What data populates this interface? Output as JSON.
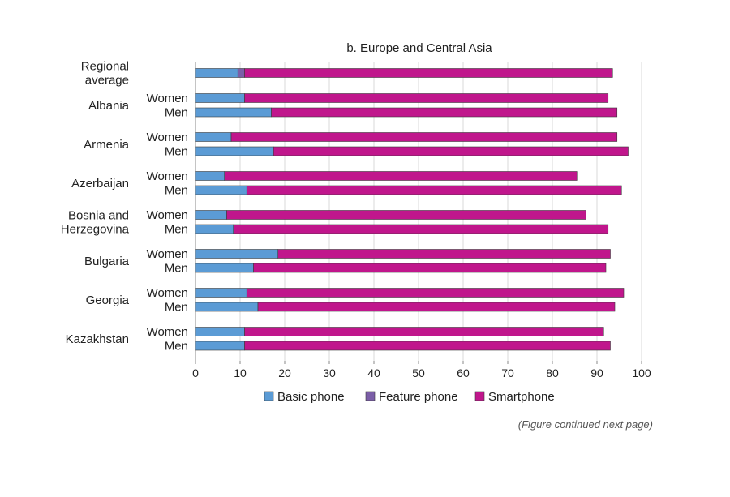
{
  "chart_data": {
    "type": "bar",
    "orientation": "horizontal",
    "stacked": true,
    "title": "b. Europe and Central Asia",
    "note": "(Figure continued next page)",
    "xlabel": "",
    "ylabel": "",
    "xlim": [
      0,
      100
    ],
    "xticks": [
      "0",
      "10",
      "20",
      "30",
      "40",
      "50",
      "60",
      "70",
      "80",
      "90",
      "100"
    ],
    "grid": true,
    "legend_placement": "bottom",
    "groups": [
      {
        "label": "Regional average",
        "label_lines": [
          "Regional",
          "average"
        ],
        "rows": [
          {
            "label": "",
            "values": [
              9.5,
              1.5,
              82.5
            ]
          }
        ]
      },
      {
        "label": "Albania",
        "label_lines": [
          "Albania"
        ],
        "rows": [
          {
            "label": "Women",
            "values": [
              11,
              0,
              81.5
            ]
          },
          {
            "label": "Men",
            "values": [
              17,
              0,
              77.5
            ]
          }
        ]
      },
      {
        "label": "Armenia",
        "label_lines": [
          "Armenia"
        ],
        "rows": [
          {
            "label": "Women",
            "values": [
              8,
              0,
              86.5
            ]
          },
          {
            "label": "Men",
            "values": [
              17.5,
              0,
              79.5
            ]
          }
        ]
      },
      {
        "label": "Azerbaijan",
        "label_lines": [
          "Azerbaijan"
        ],
        "rows": [
          {
            "label": "Women",
            "values": [
              6.5,
              0,
              79
            ]
          },
          {
            "label": "Men",
            "values": [
              11.5,
              0,
              84
            ]
          }
        ]
      },
      {
        "label": "Bosnia and Herzegovina",
        "label_lines": [
          "Bosnia and",
          "Herzegovina"
        ],
        "rows": [
          {
            "label": "Women",
            "values": [
              7,
              0,
              80.5
            ]
          },
          {
            "label": "Men",
            "values": [
              8.5,
              0,
              84
            ]
          }
        ]
      },
      {
        "label": "Bulgaria",
        "label_lines": [
          "Bulgaria"
        ],
        "rows": [
          {
            "label": "Women",
            "values": [
              18.5,
              0,
              74.5
            ]
          },
          {
            "label": "Men",
            "values": [
              13,
              0,
              79
            ]
          }
        ]
      },
      {
        "label": "Georgia",
        "label_lines": [
          "Georgia"
        ],
        "rows": [
          {
            "label": "Women",
            "values": [
              11.5,
              0,
              84.5
            ]
          },
          {
            "label": "Men",
            "values": [
              14,
              0,
              80
            ]
          }
        ]
      },
      {
        "label": "Kazakhstan",
        "label_lines": [
          "Kazakhstan"
        ],
        "rows": [
          {
            "label": "Women",
            "values": [
              11,
              0,
              80.5
            ]
          },
          {
            "label": "Men",
            "values": [
              11,
              0,
              82
            ]
          }
        ]
      }
    ],
    "series": [
      {
        "name": "Basic phone",
        "color": "#5b9bd5"
      },
      {
        "name": "Feature phone",
        "color": "#7b5ea7"
      },
      {
        "name": "Smartphone",
        "color": "#c0168c"
      }
    ]
  }
}
